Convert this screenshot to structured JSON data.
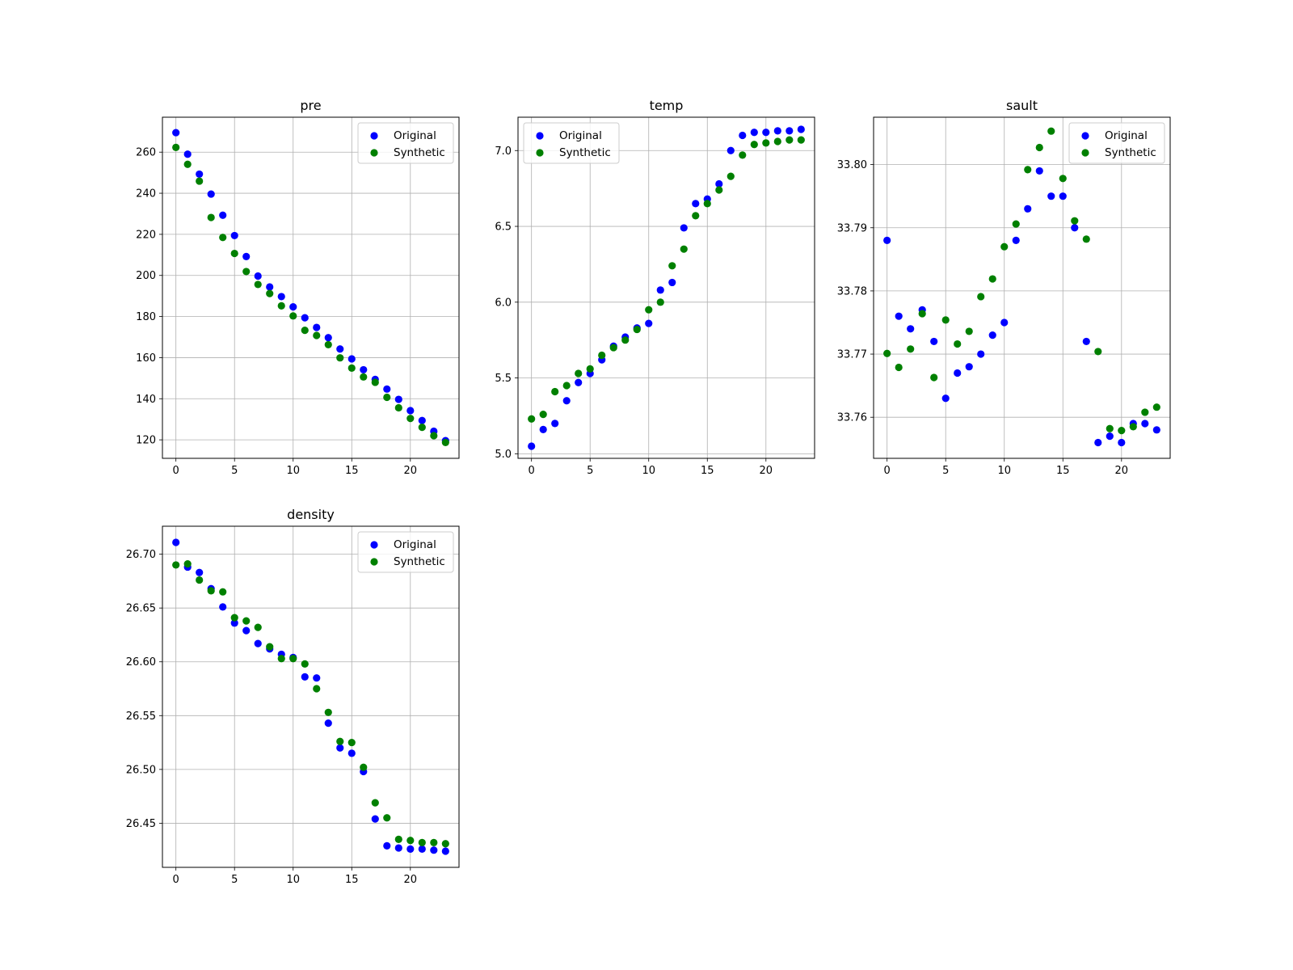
{
  "chart_data": [
    {
      "type": "scatter",
      "title": "pre",
      "xlabel": "",
      "ylabel": "",
      "xlim": [
        -1.15,
        24.15
      ],
      "ylim": [
        111,
        277
      ],
      "xticks": [
        0,
        5,
        10,
        15,
        20
      ],
      "yticks": [
        120,
        140,
        160,
        180,
        200,
        220,
        240,
        260
      ],
      "ytick_labels": [
        "120",
        "140",
        "160",
        "180",
        "200",
        "220",
        "240",
        "260"
      ],
      "grid": true,
      "legend_position": "top-right",
      "series": [
        {
          "name": "Original",
          "color": "#0000ff",
          "x": [
            0,
            1,
            2,
            3,
            4,
            5,
            6,
            7,
            8,
            9,
            10,
            11,
            12,
            13,
            14,
            15,
            16,
            17,
            18,
            19,
            20,
            21,
            22,
            23
          ],
          "y": [
            269.5,
            259,
            249.3,
            239.6,
            229.3,
            219.4,
            209.2,
            199.7,
            194.4,
            189.7,
            184.7,
            179.4,
            174.7,
            169.7,
            164.2,
            159.4,
            154.1,
            149.4,
            144.7,
            139.7,
            134.2,
            129.4,
            124.2,
            119.6
          ]
        },
        {
          "name": "Synthetic",
          "color": "#008000",
          "x": [
            0,
            1,
            2,
            3,
            4,
            5,
            6,
            7,
            8,
            9,
            10,
            11,
            12,
            13,
            14,
            15,
            16,
            17,
            18,
            19,
            20,
            21,
            22,
            23
          ],
          "y": [
            262.3,
            254.1,
            245.9,
            228.2,
            218.5,
            210.7,
            201.9,
            195.6,
            191.2,
            185.2,
            180.3,
            173.3,
            170.8,
            166.3,
            159.9,
            154.9,
            150.6,
            148,
            140.7,
            135.6,
            130.4,
            126.1,
            122,
            118.7
          ]
        }
      ]
    },
    {
      "type": "scatter",
      "title": "temp",
      "xlabel": "",
      "ylabel": "",
      "xlim": [
        -1.15,
        24.15
      ],
      "ylim": [
        4.97,
        7.22
      ],
      "xticks": [
        0,
        5,
        10,
        15,
        20
      ],
      "yticks": [
        5.0,
        5.5,
        6.0,
        6.5,
        7.0
      ],
      "ytick_labels": [
        "5.0",
        "5.5",
        "6.0",
        "6.5",
        "7.0"
      ],
      "grid": true,
      "legend_position": "top-left",
      "series": [
        {
          "name": "Original",
          "color": "#0000ff",
          "x": [
            0,
            1,
            2,
            3,
            4,
            5,
            6,
            7,
            8,
            9,
            10,
            11,
            12,
            13,
            14,
            15,
            16,
            17,
            18,
            19,
            20,
            21,
            22,
            23
          ],
          "y": [
            5.05,
            5.16,
            5.2,
            5.35,
            5.47,
            5.53,
            5.62,
            5.71,
            5.77,
            5.83,
            5.86,
            6.08,
            6.13,
            6.49,
            6.65,
            6.68,
            6.78,
            7,
            7.1,
            7.12,
            7.12,
            7.13,
            7.13,
            7.14
          ]
        },
        {
          "name": "Synthetic",
          "color": "#008000",
          "x": [
            0,
            1,
            2,
            3,
            4,
            5,
            6,
            7,
            8,
            9,
            10,
            11,
            12,
            13,
            14,
            15,
            16,
            17,
            18,
            19,
            20,
            21,
            22,
            23
          ],
          "y": [
            5.23,
            5.26,
            5.41,
            5.45,
            5.53,
            5.56,
            5.65,
            5.7,
            5.75,
            5.82,
            5.95,
            6,
            6.24,
            6.35,
            6.57,
            6.65,
            6.74,
            6.83,
            6.97,
            7.04,
            7.05,
            7.06,
            7.07,
            7.07
          ]
        }
      ]
    },
    {
      "type": "scatter",
      "title": "sault",
      "xlabel": "",
      "ylabel": "",
      "xlim": [
        -1.15,
        24.15
      ],
      "ylim": [
        33.7535,
        33.8075
      ],
      "xticks": [
        0,
        5,
        10,
        15,
        20
      ],
      "yticks": [
        33.76,
        33.77,
        33.78,
        33.79,
        33.8
      ],
      "ytick_labels": [
        "33.76",
        "33.77",
        "33.78",
        "33.79",
        "33.80"
      ],
      "grid": true,
      "legend_position": "top-right",
      "series": [
        {
          "name": "Original",
          "color": "#0000ff",
          "x": [
            0,
            1,
            2,
            3,
            4,
            5,
            6,
            7,
            8,
            9,
            10,
            11,
            12,
            13,
            14,
            15,
            16,
            17,
            18,
            19,
            20,
            21,
            22,
            23
          ],
          "y": [
            33.788,
            33.776,
            33.774,
            33.777,
            33.772,
            33.763,
            33.767,
            33.768,
            33.77,
            33.773,
            33.775,
            33.788,
            33.793,
            33.799,
            33.795,
            33.795,
            33.79,
            33.772,
            33.756,
            33.757,
            33.756,
            33.759,
            33.759,
            33.758
          ]
        },
        {
          "name": "Synthetic",
          "color": "#008000",
          "x": [
            0,
            1,
            2,
            3,
            4,
            5,
            6,
            7,
            8,
            9,
            10,
            11,
            12,
            13,
            14,
            15,
            16,
            17,
            18,
            19,
            20,
            21,
            22,
            23
          ],
          "y": [
            33.7701,
            33.7679,
            33.7708,
            33.7764,
            33.7663,
            33.7754,
            33.7716,
            33.7736,
            33.7791,
            33.7819,
            33.787,
            33.7906,
            33.7992,
            33.8027,
            33.8053,
            33.7978,
            33.7911,
            33.7882,
            33.7704,
            33.7582,
            33.7579,
            33.7585,
            33.7608,
            33.7616
          ]
        }
      ]
    },
    {
      "type": "scatter",
      "title": "density",
      "xlabel": "",
      "ylabel": "",
      "xlim": [
        -1.15,
        24.15
      ],
      "ylim": [
        26.409,
        26.726
      ],
      "xticks": [
        0,
        5,
        10,
        15,
        20
      ],
      "yticks": [
        26.45,
        26.5,
        26.55,
        26.6,
        26.65,
        26.7
      ],
      "ytick_labels": [
        "26.45",
        "26.50",
        "26.55",
        "26.60",
        "26.65",
        "26.70"
      ],
      "grid": true,
      "legend_position": "top-right",
      "series": [
        {
          "name": "Original",
          "color": "#0000ff",
          "x": [
            0,
            1,
            2,
            3,
            4,
            5,
            6,
            7,
            8,
            9,
            10,
            11,
            12,
            13,
            14,
            15,
            16,
            17,
            18,
            19,
            20,
            21,
            22,
            23
          ],
          "y": [
            26.711,
            26.688,
            26.683,
            26.668,
            26.651,
            26.636,
            26.629,
            26.617,
            26.612,
            26.607,
            26.604,
            26.586,
            26.585,
            26.543,
            26.52,
            26.515,
            26.498,
            26.454,
            26.429,
            26.427,
            26.426,
            26.426,
            26.425,
            26.424
          ]
        },
        {
          "name": "Synthetic",
          "color": "#008000",
          "x": [
            0,
            1,
            2,
            3,
            4,
            5,
            6,
            7,
            8,
            9,
            10,
            11,
            12,
            13,
            14,
            15,
            16,
            17,
            18,
            19,
            20,
            21,
            22,
            23
          ],
          "y": [
            26.69,
            26.691,
            26.676,
            26.666,
            26.665,
            26.641,
            26.638,
            26.632,
            26.614,
            26.603,
            26.603,
            26.598,
            26.575,
            26.553,
            26.526,
            26.525,
            26.502,
            26.469,
            26.455,
            26.435,
            26.434,
            26.432,
            26.432,
            26.431
          ]
        }
      ]
    }
  ]
}
